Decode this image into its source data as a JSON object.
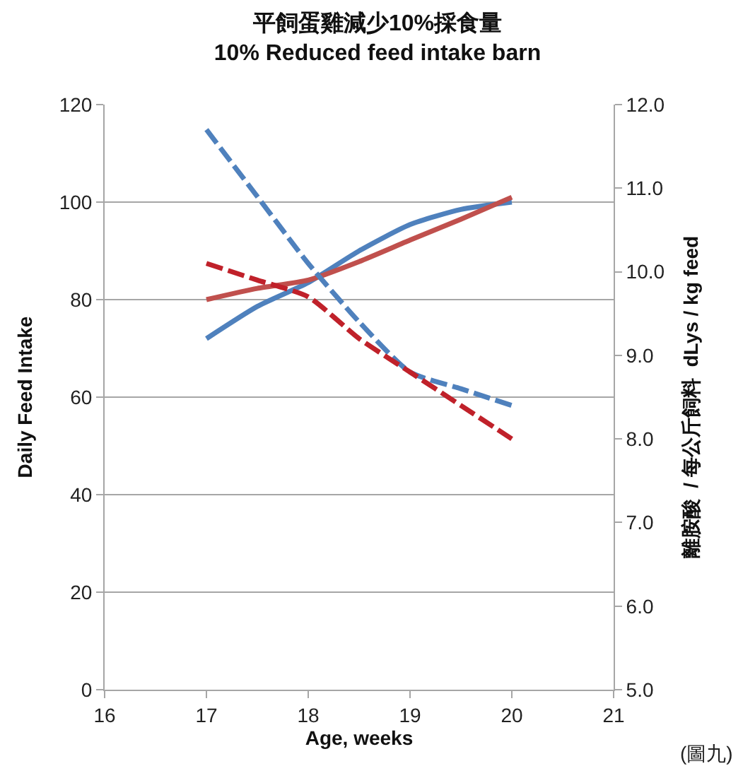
{
  "chart_data": {
    "type": "line",
    "title": "平飼蛋雞減少10%採食量",
    "subtitle": "10% Reduced feed intake barn",
    "xlabel": "Age, weeks",
    "ylabel": "Daily Feed Intake",
    "y2label": "離胺酸  / 每公斤飼料  dLys / kg feed",
    "x": [
      17,
      17.5,
      18,
      18.5,
      19,
      19.5,
      20
    ],
    "series": [
      {
        "color": "#4f81bd",
        "values": [
          72,
          78.6,
          83.5,
          90,
          95.4,
          98.5,
          100
        ],
        "line_style": "solid"
      },
      {
        "color": "#c0504d",
        "values": [
          80,
          82.3,
          84,
          87.8,
          92.2,
          96.5,
          101
        ],
        "line_style": "solid"
      },
      {
        "color": "#4f81bd",
        "values": [
          11.7,
          10.9,
          10.1,
          9.4,
          8.8,
          8.6,
          8.4
        ],
        "line_style": "dashed",
        "axis": "y2"
      },
      {
        "color": "#c0212a",
        "values": [
          10.1,
          9.9,
          9.7,
          9.2,
          8.8,
          8.4,
          8.0
        ],
        "line_style": "dashed",
        "axis": "y2"
      }
    ],
    "xlim": [
      16,
      21
    ],
    "xticks": [
      16,
      17,
      18,
      19,
      20,
      21
    ],
    "ylim": [
      0,
      120
    ],
    "yticks": [
      0,
      20,
      40,
      60,
      80,
      100,
      120
    ],
    "y2lim": [
      5,
      12
    ],
    "y2ticks": [
      {
        "value": 5,
        "label": "5.0"
      },
      {
        "value": 6,
        "label": "6.0"
      },
      {
        "value": 7,
        "label": "7.0"
      },
      {
        "value": 8,
        "label": "8.0"
      },
      {
        "value": 9,
        "label": "9.0"
      },
      {
        "value": 10,
        "label": "10.0"
      },
      {
        "value": 11,
        "label": "11.0"
      },
      {
        "value": 12,
        "label": "12.0"
      }
    ],
    "grid": "y",
    "marker": "none",
    "annotations": [
      "(圖九)"
    ]
  }
}
